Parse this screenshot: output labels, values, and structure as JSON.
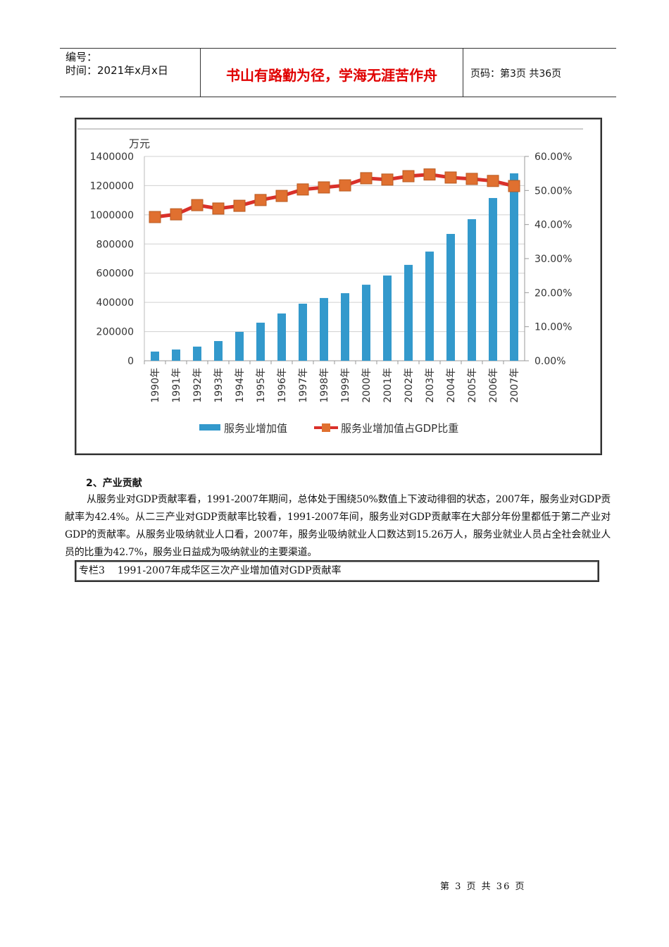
{
  "header": {
    "number_label": "编号：",
    "time_label": "时间：2021年x月x日",
    "motto": "书山有路勤为径，学海无涯苦作舟",
    "page_label": "页码：第3页  共36页"
  },
  "chart_data": {
    "type": "bar+line",
    "categories": [
      "1990年",
      "1991年",
      "1992年",
      "1993年",
      "1994年",
      "1995年",
      "1996年",
      "1997年",
      "1998年",
      "1999年",
      "2000年",
      "2001年",
      "2002年",
      "2003年",
      "2004年",
      "2005年",
      "2006年",
      "2007年"
    ],
    "ylabel": "万元",
    "y_left_ticks": [
      "0",
      "200000",
      "400000",
      "600000",
      "800000",
      "1000000",
      "1200000",
      "1400000"
    ],
    "y_right_ticks": [
      "0.00%",
      "10.00%",
      "20.00%",
      "30.00%",
      "40.00%",
      "50.00%",
      "60.00%"
    ],
    "ylim_left": [
      0,
      1400000
    ],
    "ylim_right": [
      0,
      60
    ],
    "grid": true,
    "legend_position": "bottom",
    "series": [
      {
        "name": "服务业增加值",
        "type": "bar",
        "axis": "left",
        "color": "#3399cc",
        "values": [
          63000,
          77000,
          97000,
          135000,
          198000,
          261000,
          324000,
          391000,
          430000,
          463000,
          521000,
          584000,
          657000,
          748000,
          869000,
          970000,
          1115000,
          1284000
        ]
      },
      {
        "name": "服务业增加值占GDP比重",
        "type": "line",
        "axis": "right",
        "color": "#d9302a",
        "marker_color": "#e07030",
        "values": [
          42.2,
          43.0,
          45.7,
          44.7,
          45.5,
          47.2,
          48.4,
          50.3,
          50.9,
          51.5,
          53.6,
          53.2,
          54.2,
          54.7,
          53.8,
          53.4,
          52.8,
          51.3
        ]
      }
    ]
  },
  "section": {
    "heading": "2、产业贡献",
    "paragraph": "从服务业对GDP贡献率看，1991-2007年期间，总体处于围绕50%数值上下波动徘徊的状态，2007年，服务业对GDP贡献率为42.4%。从二三产业对GDP贡献率比较看，1991-2007年间，服务业对GDP贡献率在大部分年份里都低于第二产业对GDP的贡献率。从服务业吸纳就业人口看，2007年，服务业吸纳就业人口数达到15.26万人，服务业就业人员占全社会就业人员的比重为42.7%，服务业日益成为吸纳就业的主要渠道。",
    "box_title": "专栏3    1991-2007年成华区三次产业增加值对GDP贡献率"
  },
  "footer": {
    "page": "第 3 页 共 36 页"
  }
}
